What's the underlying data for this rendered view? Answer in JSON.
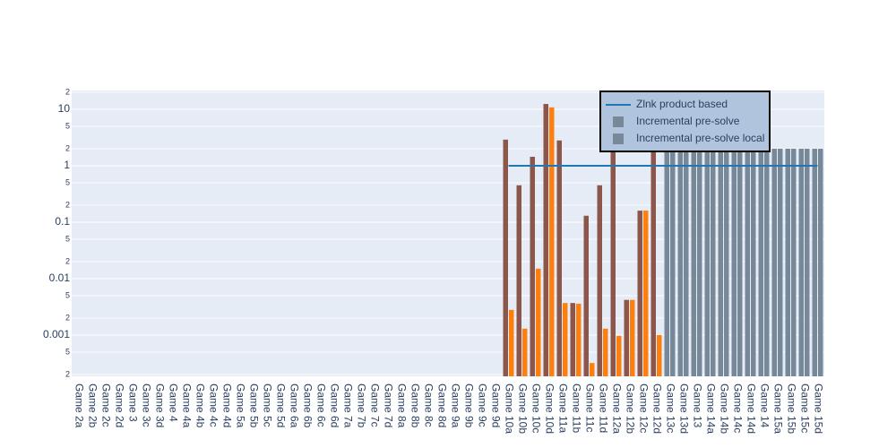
{
  "chart_data": {
    "type": "bar",
    "categories": [
      "Game 2a",
      "Game 2b",
      "Game 2c",
      "Game 2d",
      "Game 3",
      "Game 3c",
      "Game 3d",
      "Game 4",
      "Game 4a",
      "Game 4b",
      "Game 4c",
      "Game 4d",
      "Game 5a",
      "Game 5b",
      "Game 5c",
      "Game 5d",
      "Game 6a",
      "Game 6b",
      "Game 6c",
      "Game 6d",
      "Game 7a",
      "Game 7b",
      "Game 7c",
      "Game 7d",
      "Game 8a",
      "Game 8b",
      "Game 8c",
      "Game 8d",
      "Game 9a",
      "Game 9b",
      "Game 9c",
      "Game 9d",
      "Game 10a",
      "Game 10b",
      "Game 10c",
      "Game 10d",
      "Game 11a",
      "Game 11b",
      "Game 11c",
      "Game 11d",
      "Game 12a",
      "Game 12b",
      "Game 12c",
      "Game 12d",
      "Game 13c",
      "Game 13d",
      "Game 13",
      "Game 14a",
      "Game 14b",
      "Game 14c",
      "Game 14d",
      "Game 14",
      "Game 15a",
      "Game 15b",
      "Game 15c",
      "Game 15d"
    ],
    "series": [
      {
        "name": "Zlnk product based",
        "type": "line",
        "color": "#1f77b4",
        "values": [
          null,
          null,
          null,
          null,
          null,
          null,
          null,
          null,
          null,
          null,
          null,
          null,
          null,
          null,
          null,
          null,
          null,
          null,
          null,
          null,
          null,
          null,
          null,
          null,
          null,
          null,
          null,
          null,
          null,
          null,
          null,
          null,
          1,
          1,
          1,
          1,
          1,
          1,
          1,
          1,
          1,
          1,
          1,
          1,
          1,
          1,
          1,
          1,
          1,
          1,
          1,
          1,
          1,
          1,
          1,
          1
        ]
      },
      {
        "name": "Incremental pre-solve",
        "type": "bar",
        "colors": [
          "#778899",
          "#778899",
          "#778899",
          "#778899",
          "#778899",
          "#778899",
          "#778899",
          "#778899",
          "#778899",
          "#778899",
          "#778899",
          "#778899",
          "#778899",
          "#778899",
          "#778899",
          "#778899",
          "#778899",
          "#778899",
          "#778899",
          "#778899",
          "#778899",
          "#778899",
          "#778899",
          "#778899",
          "#778899",
          "#778899",
          "#778899",
          "#778899",
          "#778899",
          "#778899",
          "#778899",
          "#778899",
          "#8c564b",
          "#8c564b",
          "#8c564b",
          "#8c564b",
          "#8c564b",
          "#8c564b",
          "#8c564b",
          "#8c564b",
          "#8c564b",
          "#8c564b",
          "#8c564b",
          "#8c564b",
          "#778899",
          "#778899",
          "#778899",
          "#778899",
          "#778899",
          "#778899",
          "#778899",
          "#778899",
          "#778899",
          "#778899",
          "#778899",
          "#778899"
        ],
        "values": [
          null,
          null,
          null,
          null,
          null,
          null,
          null,
          null,
          null,
          null,
          null,
          null,
          null,
          null,
          null,
          null,
          null,
          null,
          null,
          null,
          null,
          null,
          null,
          null,
          null,
          null,
          null,
          null,
          null,
          null,
          null,
          null,
          2.9,
          0.45,
          1.44,
          12.4,
          2.8,
          0.0037,
          0.13,
          0.45,
          3,
          0.0042,
          0.16,
          2,
          2,
          2,
          2,
          2,
          2,
          2,
          2,
          2,
          2,
          2,
          2,
          2
        ]
      },
      {
        "name": "Incremental pre-solve local",
        "type": "bar",
        "colors": [
          "#778899",
          "#778899",
          "#778899",
          "#778899",
          "#778899",
          "#778899",
          "#778899",
          "#778899",
          "#778899",
          "#778899",
          "#778899",
          "#778899",
          "#778899",
          "#778899",
          "#778899",
          "#778899",
          "#778899",
          "#778899",
          "#778899",
          "#778899",
          "#778899",
          "#778899",
          "#778899",
          "#778899",
          "#778899",
          "#778899",
          "#778899",
          "#778899",
          "#778899",
          "#778899",
          "#778899",
          "#778899",
          "#ff7f0e",
          "#ff7f0e",
          "#ff7f0e",
          "#ff7f0e",
          "#ff7f0e",
          "#ff7f0e",
          "#ff7f0e",
          "#ff7f0e",
          "#ff7f0e",
          "#ff7f0e",
          "#ff7f0e",
          "#ff7f0e",
          "#778899",
          "#778899",
          "#778899",
          "#778899",
          "#778899",
          "#778899",
          "#778899",
          "#778899",
          "#778899",
          "#778899",
          "#778899",
          "#778899"
        ],
        "values": [
          null,
          null,
          null,
          null,
          null,
          null,
          null,
          null,
          null,
          null,
          null,
          null,
          null,
          null,
          null,
          null,
          null,
          null,
          null,
          null,
          null,
          null,
          null,
          null,
          null,
          null,
          null,
          null,
          null,
          null,
          null,
          null,
          0.0028,
          0.0013,
          0.015,
          10.8,
          0.0037,
          0.0036,
          0.00032,
          0.0013,
          0.00097,
          0.0042,
          0.16,
          0.001,
          2,
          2,
          2,
          2,
          2,
          2,
          2,
          2,
          2,
          2,
          2,
          2
        ]
      }
    ],
    "ylog": true,
    "ylim": [
      0.000186,
      21.5
    ],
    "yticks": [
      {
        "value": 0.0002,
        "label": "2"
      },
      {
        "value": 0.0005,
        "label": "5"
      },
      0.001,
      {
        "value": 0.002,
        "label": "2"
      },
      {
        "value": 0.005,
        "label": "5"
      },
      0.01,
      {
        "value": 0.02,
        "label": "2"
      },
      {
        "value": 0.05,
        "label": "5"
      },
      0.1,
      {
        "value": 0.2,
        "label": "2"
      },
      {
        "value": 0.5,
        "label": "5"
      },
      1,
      {
        "value": 2,
        "label": "2"
      },
      {
        "value": 5,
        "label": "5"
      },
      10,
      {
        "value": 20,
        "label": "2"
      }
    ],
    "grid": true,
    "legend": "top-right"
  }
}
